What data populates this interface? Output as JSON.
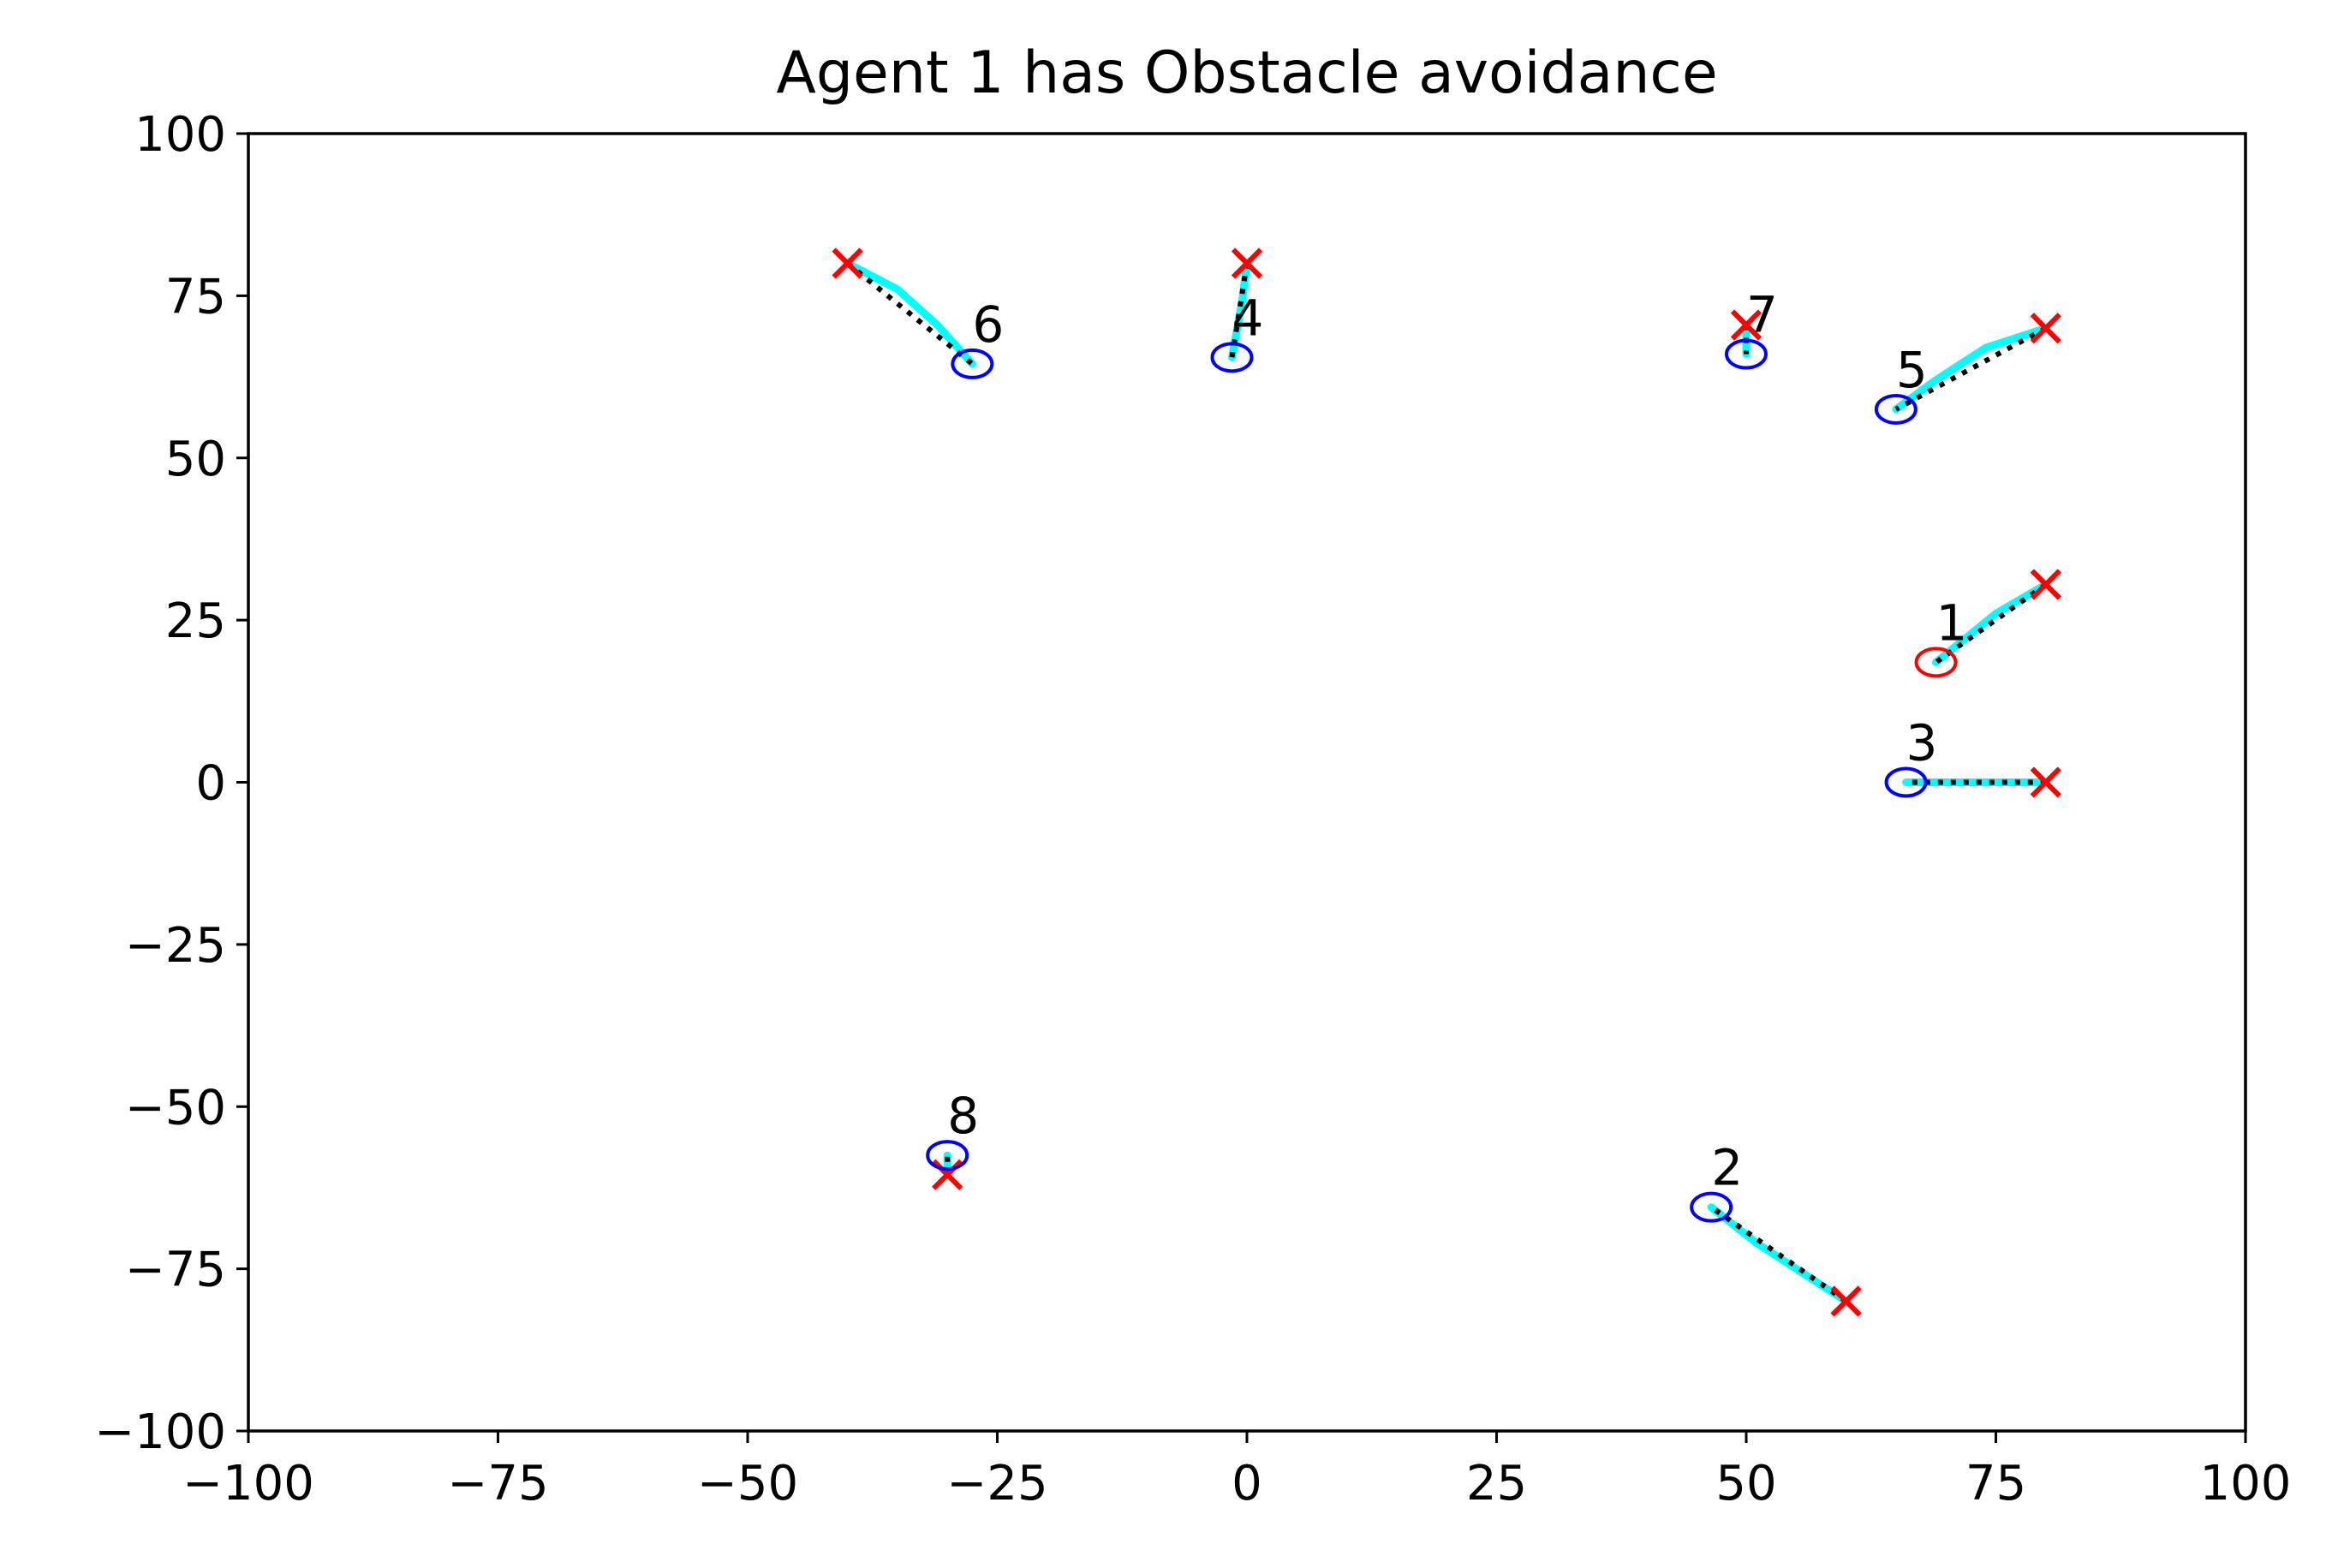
{
  "chart_data": {
    "type": "scatter",
    "title": "Agent 1 has Obstacle avoidance",
    "xlabel": "",
    "ylabel": "",
    "xlim": [
      -100,
      100
    ],
    "ylim": [
      -100,
      100
    ],
    "xticks": [
      -100,
      -75,
      -50,
      -25,
      0,
      25,
      50,
      75,
      100
    ],
    "yticks": [
      -100,
      -75,
      -50,
      -25,
      0,
      25,
      50,
      75,
      100
    ],
    "xtick_labels": [
      "−100",
      "−75",
      "−50",
      "−25",
      "0",
      "25",
      "50",
      "75",
      "100"
    ],
    "ytick_labels": [
      "−100",
      "−75",
      "−50",
      "−25",
      "0",
      "25",
      "50",
      "75",
      "100"
    ],
    "grid": false,
    "colors": {
      "goal_marker": "#ff0000",
      "agent_circle": "#0000ff",
      "highlighted_agent_circle": "#ff0000",
      "trajectory": "#00ffff",
      "path_dotted": "#000000"
    },
    "agents": [
      {
        "label": "1",
        "highlighted": true,
        "position": [
          69,
          18.5
        ],
        "goal": [
          80,
          30.5
        ],
        "trajectory": [
          [
            80,
            30.5
          ],
          [
            75,
            26
          ],
          [
            69,
            18.5
          ]
        ]
      },
      {
        "label": "2",
        "highlighted": false,
        "position": [
          46.5,
          -65.5
        ],
        "goal": [
          60,
          -80
        ],
        "trajectory": [
          [
            60,
            -80
          ],
          [
            55,
            -75
          ],
          [
            51,
            -71
          ],
          [
            46.5,
            -65.5
          ]
        ]
      },
      {
        "label": "3",
        "highlighted": false,
        "position": [
          66,
          0
        ],
        "goal": [
          80,
          0
        ],
        "trajectory": [
          [
            80,
            0
          ],
          [
            73,
            0
          ],
          [
            66,
            0
          ]
        ]
      },
      {
        "label": "4",
        "highlighted": false,
        "position": [
          -1.5,
          65.5
        ],
        "goal": [
          0,
          80
        ],
        "trajectory": [
          [
            0,
            80
          ],
          [
            -0.5,
            74
          ],
          [
            -1.5,
            65.5
          ]
        ]
      },
      {
        "label": "5",
        "highlighted": false,
        "position": [
          65,
          57.5
        ],
        "goal": [
          80,
          70
        ],
        "trajectory": [
          [
            80,
            70
          ],
          [
            74,
            67
          ],
          [
            69,
            62
          ],
          [
            65,
            57.5
          ]
        ]
      },
      {
        "label": "6",
        "highlighted": false,
        "position": [
          -27.5,
          64.5
        ],
        "goal": [
          -40,
          80
        ],
        "trajectory": [
          [
            -40,
            80
          ],
          [
            -35,
            76
          ],
          [
            -31,
            70.5
          ],
          [
            -27.5,
            64.5
          ]
        ]
      },
      {
        "label": "7",
        "highlighted": false,
        "position": [
          50,
          66
        ],
        "goal": [
          50,
          70.5
        ],
        "trajectory": [
          [
            50,
            70.5
          ],
          [
            50,
            66
          ]
        ]
      },
      {
        "label": "8",
        "highlighted": false,
        "position": [
          -30,
          -57.5
        ],
        "goal": [
          -30,
          -60.5
        ],
        "trajectory": [
          [
            -30,
            -60.5
          ],
          [
            -30,
            -57.5
          ]
        ]
      }
    ]
  }
}
